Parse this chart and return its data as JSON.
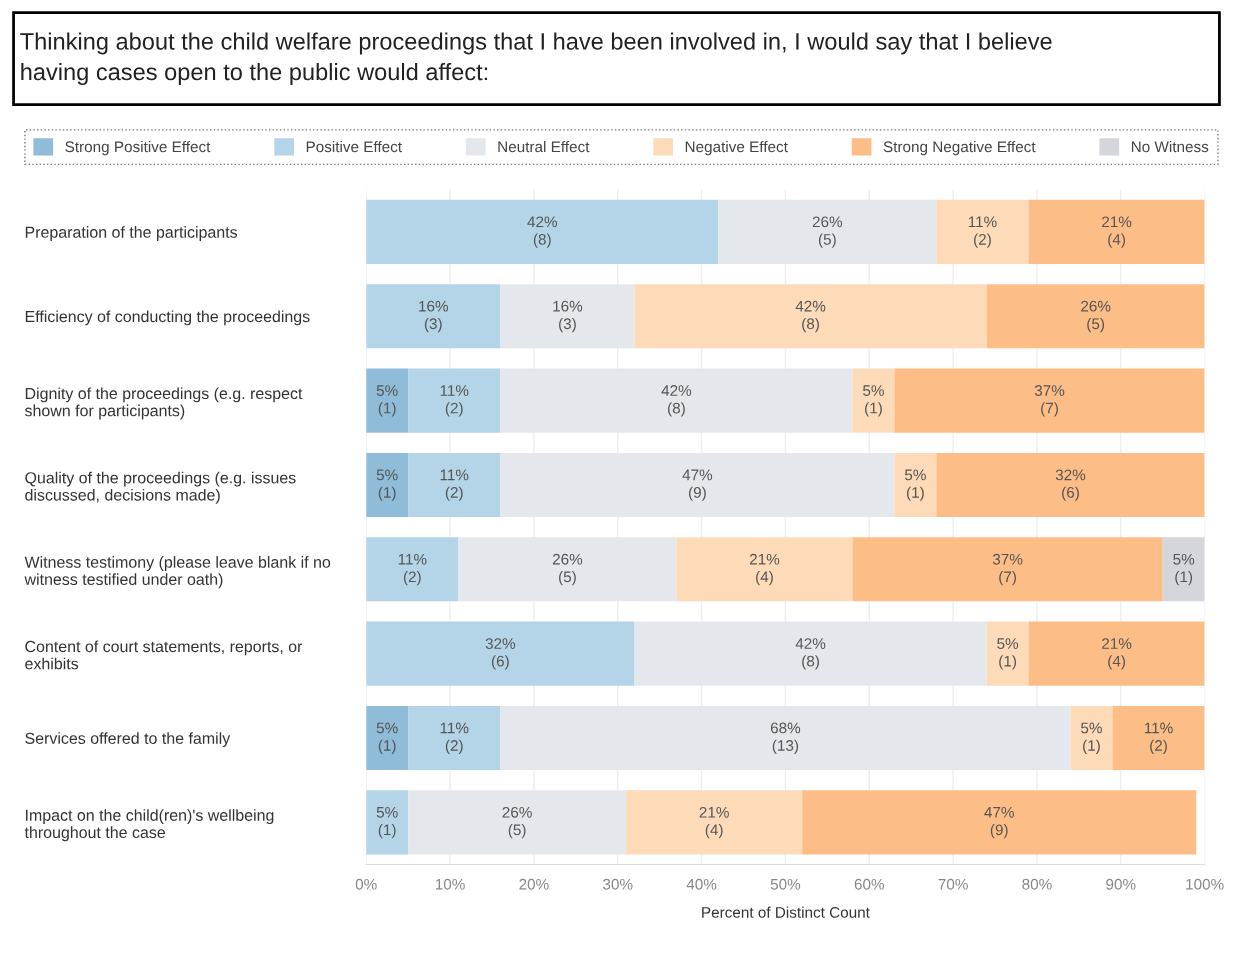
{
  "chart_data": {
    "type": "bar",
    "orientation": "horizontal",
    "stacked": true,
    "title": "Thinking about the child welfare proceedings that I have been involved in, I would say that I believe\nhaving cases open to the public would affect:",
    "xlabel": "Percent of Distinct Count",
    "categories": [
      "Preparation of the participants",
      "Efficiency of conducting the proceedings",
      "Dignity of the proceedings (e.g. respect\nshown for participants)",
      "Quality of the proceedings (e.g. issues\ndiscussed, decisions made)",
      "Witness testimony (please leave blank if no\nwitness testified under oath)",
      "Content of court statements, reports, or\nexhibits",
      "Services offered to the family",
      "Impact on the child(ren)'s wellbeing\nthroughout the case"
    ],
    "series": [
      {
        "name": "Strong Positive Effect",
        "color": "#8fbcd9",
        "values": [
          null,
          null,
          5,
          5,
          null,
          null,
          5,
          null
        ],
        "value_labels": [
          null,
          null,
          "5%\n(1)",
          "5%\n(1)",
          null,
          null,
          "5%\n(1)",
          null
        ]
      },
      {
        "name": "Positive Effect",
        "color": "#b4d4e8",
        "values": [
          42,
          16,
          11,
          11,
          11,
          32,
          11,
          5
        ],
        "value_labels": [
          "42%\n(8)",
          "16%\n(3)",
          "11%\n(2)",
          "11%\n(2)",
          "11%\n(2)",
          "32%\n(6)",
          "11%\n(2)",
          "5%\n(1)"
        ]
      },
      {
        "name": "Neutral Effect",
        "color": "#e4e7ec",
        "values": [
          26,
          16,
          42,
          47,
          26,
          42,
          68,
          26
        ],
        "value_labels": [
          "26%\n(5)",
          "16%\n(3)",
          "42%\n(8)",
          "47%\n(9)",
          "26%\n(5)",
          "42%\n(8)",
          "68%\n(13)",
          "26%\n(5)"
        ]
      },
      {
        "name": "Negative Effect",
        "color": "#fddbb8",
        "values": [
          11,
          42,
          5,
          5,
          21,
          5,
          5,
          21
        ],
        "value_labels": [
          "11%\n(2)",
          "42%\n(8)",
          "5%\n(1)",
          "5%\n(1)",
          "21%\n(4)",
          "5%\n(1)",
          "5%\n(1)",
          "21%\n(4)"
        ]
      },
      {
        "name": "Strong Negative Effect",
        "color": "#fdbd86",
        "values": [
          21,
          26,
          37,
          32,
          37,
          21,
          11,
          47
        ],
        "value_labels": [
          "21%\n(4)",
          "26%\n(5)",
          "37%\n(7)",
          "32%\n(6)",
          "37%\n(7)",
          "21%\n(4)",
          "11%\n(2)",
          "47%\n(9)"
        ]
      },
      {
        "name": "No Witness",
        "color": "#d4d6db",
        "values": [
          null,
          null,
          null,
          null,
          5,
          null,
          null,
          null
        ],
        "value_labels": [
          null,
          null,
          null,
          null,
          "5%\n(1)",
          null,
          null,
          null
        ]
      }
    ],
    "xlim": [
      0,
      100
    ],
    "xticks": [
      {
        "value": 0,
        "label": "0%"
      },
      {
        "value": 10,
        "label": "10%"
      },
      {
        "value": 20,
        "label": "20%"
      },
      {
        "value": 30,
        "label": "30%"
      },
      {
        "value": 40,
        "label": "40%"
      },
      {
        "value": 50,
        "label": "50%"
      },
      {
        "value": 60,
        "label": "60%"
      },
      {
        "value": 70,
        "label": "70%"
      },
      {
        "value": 80,
        "label": "80%"
      },
      {
        "value": 90,
        "label": "90%"
      },
      {
        "value": 100,
        "label": "100%"
      }
    ],
    "grid": "x",
    "legend": "top"
  }
}
